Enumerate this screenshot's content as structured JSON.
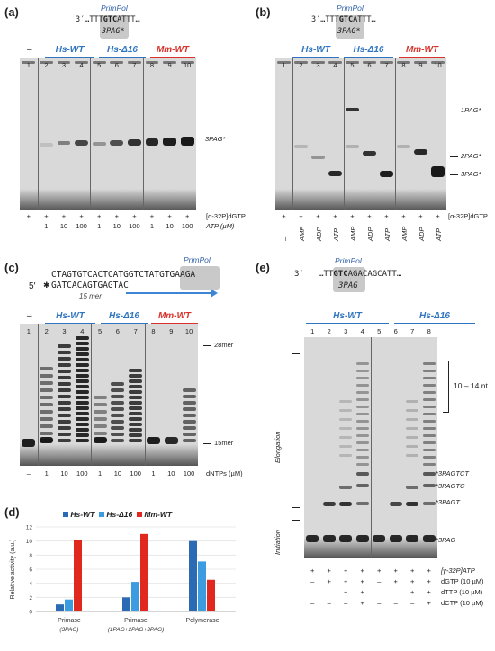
{
  "panel_a": {
    "label": "(a)",
    "enzyme": "PrimPol",
    "seq_prefix": "3′…TTT",
    "seq_bold": "GTC",
    "seq_suffix": "ATTT…",
    "primer": "3PAG*",
    "groups": [
      "Hs-WT",
      "Hs-Δ16",
      "Mm-WT"
    ],
    "dash": "–",
    "lanes": [
      "1",
      "2",
      "3",
      "4",
      "5",
      "6",
      "7",
      "8",
      "9",
      "10"
    ],
    "row1": [
      "+",
      "+",
      "+",
      "+",
      "+",
      "+",
      "+",
      "+",
      "+",
      "+"
    ],
    "row1_label": "[α-32P]dGTP",
    "row2": [
      "–",
      "1",
      "10",
      "100",
      "1",
      "10",
      "100",
      "1",
      "10",
      "100"
    ],
    "row2_label": "ATP (µM)",
    "marker": "3PAG*"
  },
  "panel_b": {
    "label": "(b)",
    "enzyme": "PrimPol",
    "seq_prefix": "3′…TTT",
    "seq_bold": "GTC",
    "seq_suffix": "ATTT…",
    "primer": "3PAG*",
    "groups": [
      "Hs-WT",
      "Hs-Δ16",
      "Mm-WT"
    ],
    "lanes": [
      "1",
      "2",
      "3",
      "4",
      "5",
      "6",
      "7",
      "8",
      "9",
      "10"
    ],
    "row1": [
      "+",
      "+",
      "+",
      "+",
      "+",
      "+",
      "+",
      "+",
      "+",
      "+"
    ],
    "row1_label": "[α-32P]dGTP",
    "row2": [
      "–",
      "AMP",
      "ADP",
      "ATP",
      "AMP",
      "ADP",
      "ATP",
      "AMP",
      "ADP",
      "ATP"
    ],
    "markers": [
      "1PAG*",
      "2PAG*",
      "3PAG*"
    ]
  },
  "panel_c": {
    "label": "(c)",
    "enzyme": "PrimPol",
    "seq_top": "CTAGTGTCACTCATGGTCTATGTGAAGA",
    "seq_bottom": "GATCACAGTGAGTAC",
    "five_prime": "5′",
    "primer_len": "15 mer",
    "groups": [
      "Hs-WT",
      "Hs-Δ16",
      "Mm-WT"
    ],
    "dash": "–",
    "lanes": [
      "1",
      "2",
      "3",
      "4",
      "5",
      "6",
      "7",
      "8",
      "9",
      "10"
    ],
    "row": [
      "–",
      "1",
      "10",
      "100",
      "1",
      "10",
      "100",
      "1",
      "10",
      "100"
    ],
    "row_label": "dNTPs (µM)",
    "markers": [
      "28mer",
      "15mer"
    ]
  },
  "panel_d": {
    "label": "(d)"
  },
  "panel_e": {
    "label": "(e)",
    "enzyme": "PrimPol",
    "seq_prefix": "3′",
    "seq_mid": "…TT",
    "seq_bold": "GTC",
    "seq_suffix": "AGACAGCATT…",
    "primer": "3PAG",
    "groups": [
      "Hs-WT",
      "Hs-Δ16"
    ],
    "lanes": [
      "1",
      "2",
      "3",
      "4",
      "5",
      "6",
      "7",
      "8"
    ],
    "rows": [
      {
        "label": "[γ-32P]ATP",
        "vals": [
          "+",
          "+",
          "+",
          "+",
          "+",
          "+",
          "+",
          "+"
        ]
      },
      {
        "label": "dGTP (10 µM)",
        "vals": [
          "–",
          "+",
          "+",
          "+",
          "–",
          "+",
          "+",
          "+"
        ]
      },
      {
        "label": "dTTP (10 µM)",
        "vals": [
          "–",
          "–",
          "+",
          "+",
          "–",
          "–",
          "+",
          "+"
        ]
      },
      {
        "label": "dCTP (10 µM)",
        "vals": [
          "–",
          "–",
          "–",
          "+",
          "–",
          "–",
          "–",
          "+"
        ]
      }
    ],
    "range": "10 – 14 nt",
    "markers": [
      "*3PAGTCT",
      "*3PAGTC",
      "*3PAGT",
      "*3PAG"
    ],
    "elongation": "Elongation",
    "initiation": "Initiation"
  },
  "chart_data": {
    "type": "bar",
    "categories": [
      "Primase (3PAG)",
      "Primase (1PAG+2PAG+3PAG)",
      "Polymerase"
    ],
    "series": [
      {
        "name": "Hs-WT",
        "values": [
          1.0,
          2.0,
          10.0
        ]
      },
      {
        "name": "Hs-Δ16",
        "values": [
          1.7,
          4.2,
          7.1
        ]
      },
      {
        "name": "Mm-WT",
        "values": [
          10.1,
          11.0,
          4.5
        ]
      }
    ],
    "ylabel": "Relative activity (a.u.)",
    "ylim": [
      0,
      12
    ],
    "yticks": [
      0,
      2,
      4,
      6,
      8,
      10,
      12
    ],
    "grid": true,
    "legend": "top",
    "colors": [
      "#2a6bb3",
      "#3d9be0",
      "#e0281e"
    ]
  }
}
